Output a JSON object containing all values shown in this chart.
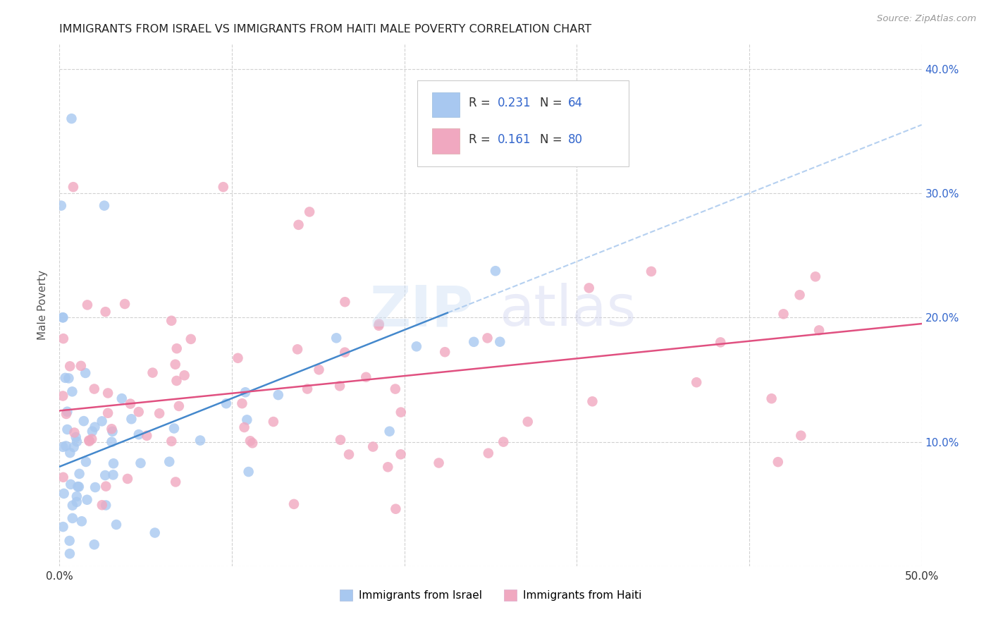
{
  "title": "IMMIGRANTS FROM ISRAEL VS IMMIGRANTS FROM HAITI MALE POVERTY CORRELATION CHART",
  "source": "Source: ZipAtlas.com",
  "ylabel": "Male Poverty",
  "xlim": [
    0.0,
    0.5
  ],
  "ylim": [
    0.0,
    0.42
  ],
  "yticks": [
    0.0,
    0.1,
    0.2,
    0.3,
    0.4
  ],
  "yticklabels": [
    "",
    "10.0%",
    "20.0%",
    "30.0%",
    "40.0%"
  ],
  "israel_color": "#a8c8f0",
  "haiti_color": "#f0a8c0",
  "israel_line_color": "#4488cc",
  "haiti_line_color": "#e05080",
  "dashed_line_color": "#a8c8ee",
  "israel_R": 0.231,
  "israel_N": 64,
  "haiti_R": 0.161,
  "haiti_N": 80,
  "legend_RN_color": "#3366cc",
  "background_color": "#ffffff",
  "grid_color": "#cccccc",
  "title_color": "#222222",
  "source_color": "#999999",
  "ylabel_color": "#555555"
}
